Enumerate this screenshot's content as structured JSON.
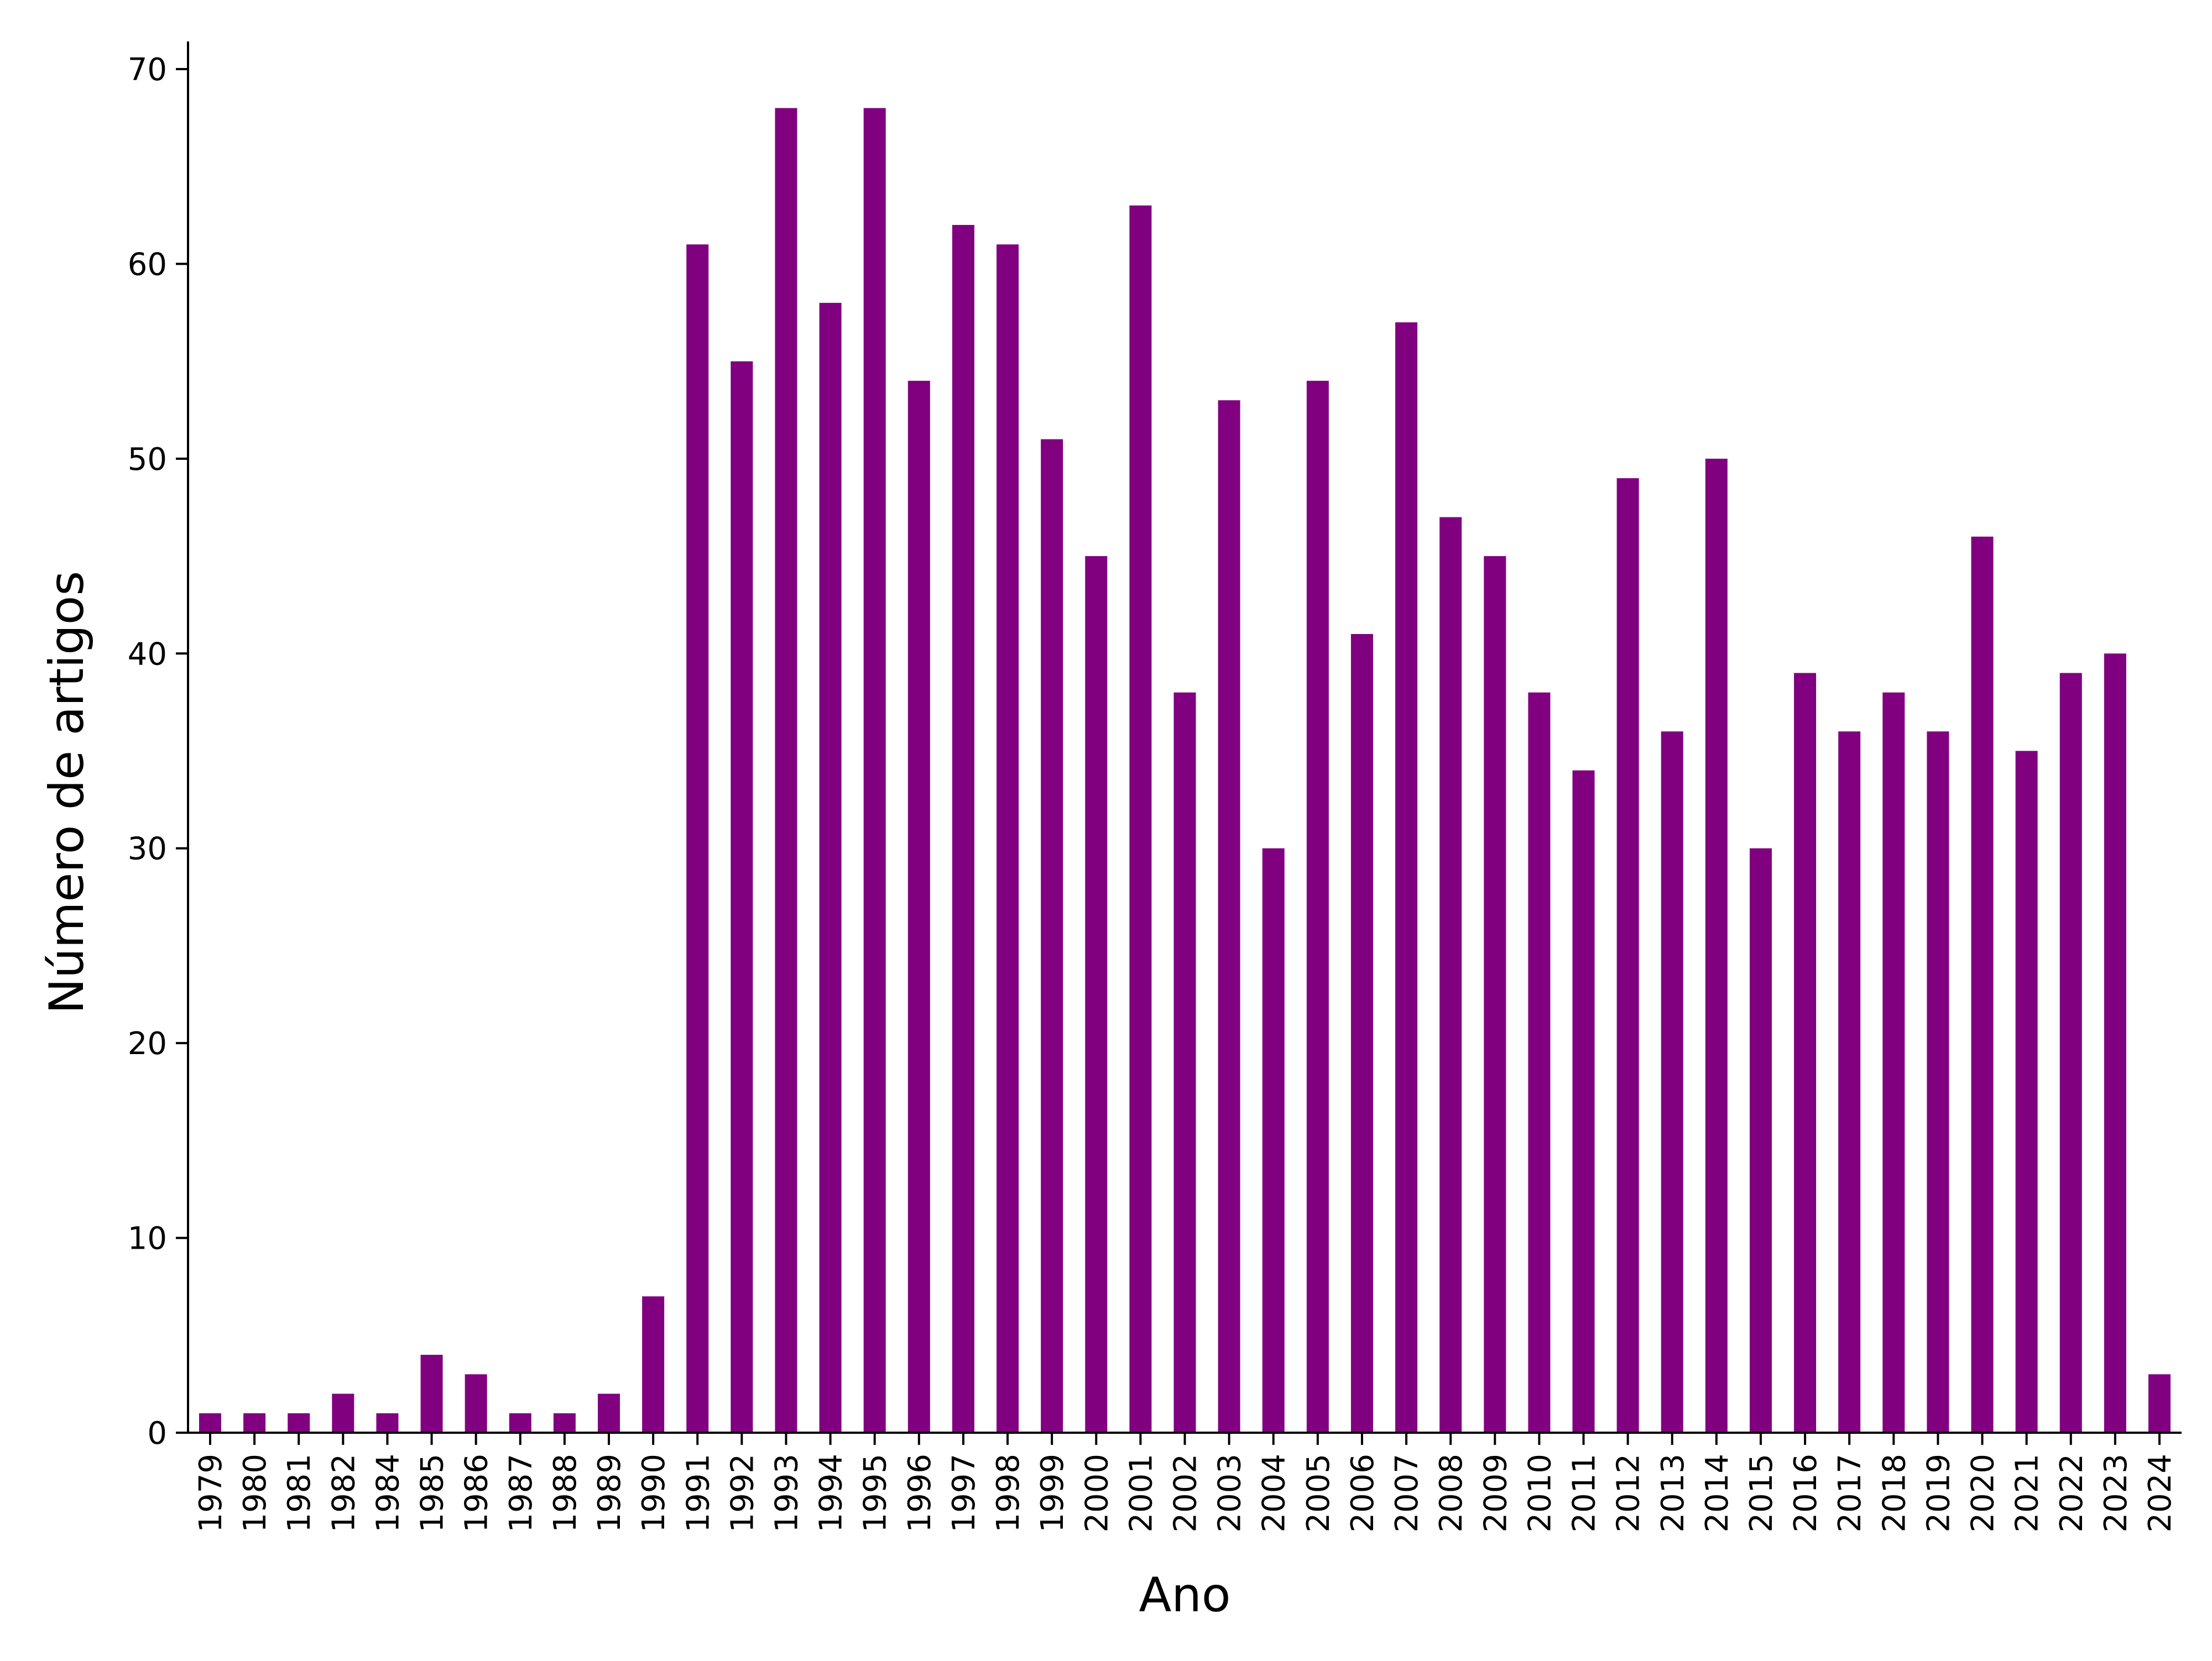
{
  "colors": {
    "bar": "#800080",
    "axis": "#000000",
    "background": "#ffffff"
  },
  "chart_data": {
    "type": "bar",
    "title": "",
    "xlabel": "Ano",
    "ylabel": "Número de artigos",
    "ylim": [
      0,
      70
    ],
    "yticks": [
      0,
      10,
      20,
      30,
      40,
      50,
      60,
      70
    ],
    "grid": false,
    "legend": "none",
    "categories": [
      "1979",
      "1980",
      "1981",
      "1982",
      "1984",
      "1985",
      "1986",
      "1987",
      "1988",
      "1989",
      "1990",
      "1991",
      "1992",
      "1993",
      "1994",
      "1995",
      "1996",
      "1997",
      "1998",
      "1999",
      "2000",
      "2001",
      "2002",
      "2003",
      "2004",
      "2005",
      "2006",
      "2007",
      "2008",
      "2009",
      "2010",
      "2011",
      "2012",
      "2013",
      "2014",
      "2015",
      "2016",
      "2017",
      "2018",
      "2019",
      "2020",
      "2021",
      "2022",
      "2023",
      "2024"
    ],
    "values": [
      1,
      1,
      1,
      2,
      1,
      4,
      3,
      1,
      1,
      2,
      7,
      61,
      55,
      68,
      58,
      68,
      54,
      62,
      61,
      51,
      45,
      63,
      38,
      53,
      30,
      54,
      41,
      57,
      47,
      45,
      38,
      34,
      49,
      36,
      50,
      30,
      39,
      36,
      38,
      36,
      46,
      35,
      39,
      40,
      3
    ]
  }
}
